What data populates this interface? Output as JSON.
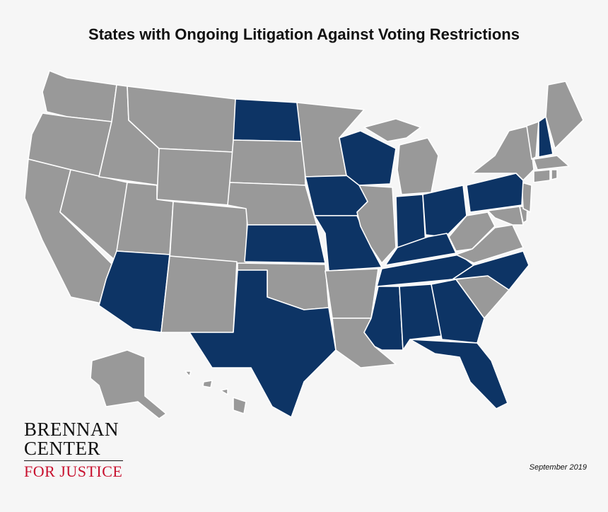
{
  "title": "States with Ongoing Litigation Against Voting Restrictions",
  "date": "September 2019",
  "logo": {
    "line1": "BRENNAN",
    "line2": "CENTER",
    "line3": "FOR JUSTICE"
  },
  "colors": {
    "litigation": "#0d3465",
    "other": "#999999",
    "border": "#ffffff",
    "background": "#f6f6f6",
    "logo_accent": "#c8102e"
  },
  "states_with_litigation": [
    "North Dakota",
    "Wisconsin",
    "Iowa",
    "Kansas",
    "Missouri",
    "Arizona",
    "Texas",
    "Indiana",
    "Ohio",
    "Kentucky",
    "Tennessee",
    "North Carolina",
    "Mississippi",
    "Alabama",
    "Georgia",
    "Florida",
    "Pennsylvania",
    "New Hampshire"
  ]
}
